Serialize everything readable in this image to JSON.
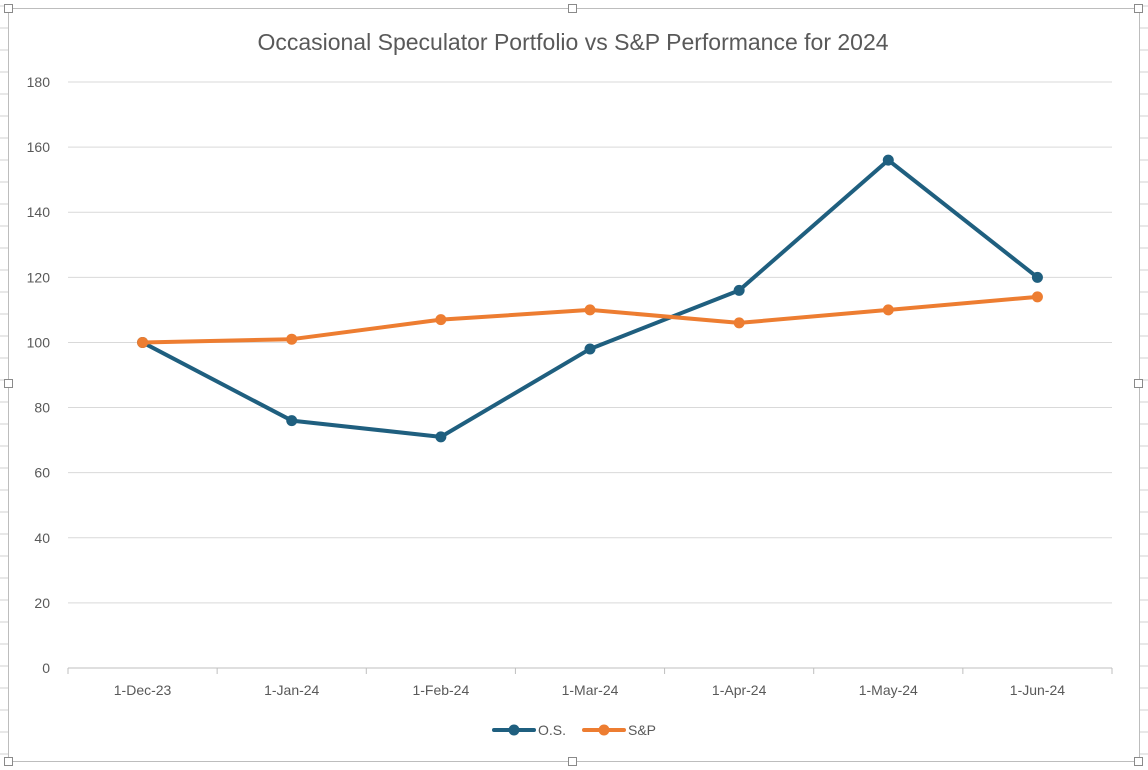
{
  "chart_data": {
    "type": "line",
    "title": "Occasional Speculator Portfolio vs S&P Performance for 2024",
    "categories": [
      "1-Dec-23",
      "1-Jan-24",
      "1-Feb-24",
      "1-Mar-24",
      "1-Apr-24",
      "1-May-24",
      "1-Jun-24"
    ],
    "series": [
      {
        "name": "O.S.",
        "values": [
          100,
          76,
          71,
          98,
          116,
          156,
          120
        ],
        "color": "#1f5f7f"
      },
      {
        "name": "S&P",
        "values": [
          100,
          101,
          107,
          110,
          106,
          110,
          114
        ],
        "color": "#ed7d31"
      }
    ],
    "ylim": [
      0,
      180
    ],
    "yticks": [
      "0",
      "20",
      "40",
      "60",
      "80",
      "100",
      "120",
      "140",
      "160",
      "180"
    ],
    "grid": true,
    "legend": "bottom",
    "gridline_color": "#d9d9d9"
  }
}
